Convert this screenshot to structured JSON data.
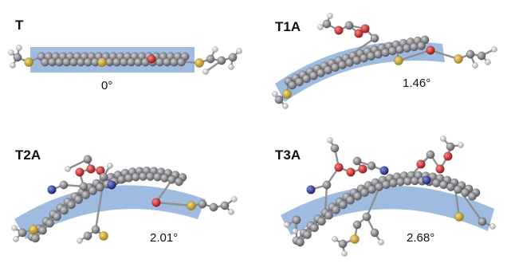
{
  "panels": [
    {
      "label": "T",
      "angle": "0°"
    },
    {
      "label": "T1A",
      "angle": "1.46°"
    },
    {
      "label": "T2A",
      "angle": "2.01°"
    },
    {
      "label": "T3A",
      "angle": "2.68°"
    }
  ],
  "colors": {
    "band": "#7fa6d6",
    "carbon": "#8a8a8e",
    "hydrogen": "#eeeeee",
    "sulfur": "#d9b43a",
    "oxygen": "#d92b2b",
    "nitrogen": "#2b3b9c"
  }
}
